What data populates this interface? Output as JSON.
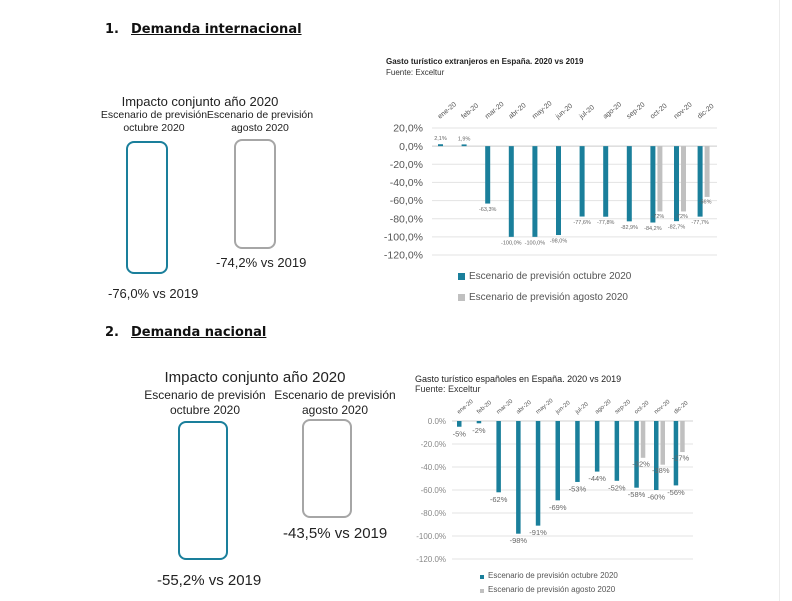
{
  "sections": [
    {
      "number": "1.",
      "title": "Demanda internacional",
      "impact_title": "Impacto conjunto año 2020",
      "scenario_oct_label_1": "Escenario de previsión",
      "scenario_oct_label_2": "octubre 2020",
      "scenario_aug_label_1": "Escenario de previsión",
      "scenario_aug_label_2": "agosto 2020",
      "oct_value": "-76,0% vs 2019",
      "aug_value": "-74,2% vs 2019"
    },
    {
      "number": "2.",
      "title": "Demanda nacional",
      "impact_title": "Impacto conjunto año 2020",
      "scenario_oct_label_1": "Escenario de previsión",
      "scenario_oct_label_2": "octubre 2020",
      "scenario_aug_label_1": "Escenario de previsión",
      "scenario_aug_label_2": "agosto 2020",
      "oct_value": "-55,2% vs 2019",
      "aug_value": "-43,5% vs 2019"
    }
  ],
  "colors": {
    "teal": "#1a7f9b",
    "gray": "#c0c0c0"
  },
  "chart_data": [
    {
      "type": "bar",
      "title": "Gasto turístico extranjeros en España. 2020 vs 2019",
      "subtitle": "Fuente: Exceltur",
      "categories": [
        "ene-20",
        "feb-20",
        "mar-20",
        "abr-20",
        "may-20",
        "jun-20",
        "jul-20",
        "ago-20",
        "sep-20",
        "oct-20",
        "nov-20",
        "dic-20"
      ],
      "yticks": [
        "20,0%",
        "0,0%",
        "-20,0%",
        "-40,0%",
        "-60,0%",
        "-80,0%",
        "-100,0%",
        "-120,0%"
      ],
      "ylim": [
        -120,
        20
      ],
      "series": [
        {
          "name": "Escenario de previsión octubre 2020",
          "color": "#1a7f9b",
          "values": [
            2.1,
            1.9,
            -63.3,
            -100.0,
            -100.0,
            -98.0,
            -77.6,
            -77.8,
            -82.9,
            -84.2,
            -82.7,
            -77.7
          ],
          "labels": [
            "2,1%",
            "1,9%",
            "-63,3%",
            "-100,0%",
            "-100,0%",
            "-98,0%",
            "-77,6%",
            "-77,8%",
            "-82,9%",
            "-84,2%",
            "-82,7%",
            "-77,7%"
          ]
        },
        {
          "name": "Escenario de previsión agosto 2020",
          "color": "#c0c0c0",
          "values": [
            null,
            null,
            null,
            null,
            null,
            null,
            null,
            null,
            null,
            -72,
            -72,
            -56
          ],
          "labels": [
            "",
            "",
            "",
            "",
            "",
            "",
            "",
            "",
            "",
            "-72%",
            "-72%",
            "-56%"
          ]
        }
      ],
      "legend": "bottom",
      "grid": true
    },
    {
      "type": "bar",
      "title": "Gasto turístico españoles en España. 2020 vs 2019",
      "subtitle": "Fuente: Exceltur",
      "categories": [
        "ene-20",
        "feb-20",
        "mar-20",
        "abr-20",
        "may-20",
        "jun-20",
        "jul-20",
        "ago-20",
        "sep-20",
        "oct-20",
        "nov-20",
        "dic-20"
      ],
      "yticks": [
        "0.0%",
        "-20.0%",
        "-40.0%",
        "-60.0%",
        "-80.0%",
        "-100.0%",
        "-120.0%"
      ],
      "ylim": [
        -120,
        0
      ],
      "series": [
        {
          "name": "Escenario de previsión octubre 2020",
          "color": "#1a7f9b",
          "values": [
            -5,
            -2,
            -62,
            -98,
            -91,
            -69,
            -53,
            -44,
            -52,
            -58,
            -60,
            -56
          ],
          "labels": [
            "-5%",
            "-2%",
            "-62%",
            "-98%",
            "-91%",
            "-69%",
            "-53%",
            "-44%",
            "-52%",
            "-58%",
            "-60%",
            "-56%"
          ]
        },
        {
          "name": "Escenario de previsión agosto 2020",
          "color": "#c0c0c0",
          "values": [
            null,
            null,
            null,
            null,
            null,
            null,
            null,
            null,
            null,
            -32,
            -38,
            -27
          ],
          "labels": [
            "",
            "",
            "",
            "",
            "",
            "",
            "",
            "",
            "",
            "-32%",
            "-38%",
            "-27%"
          ]
        }
      ],
      "legend": "bottom",
      "grid": true
    }
  ]
}
